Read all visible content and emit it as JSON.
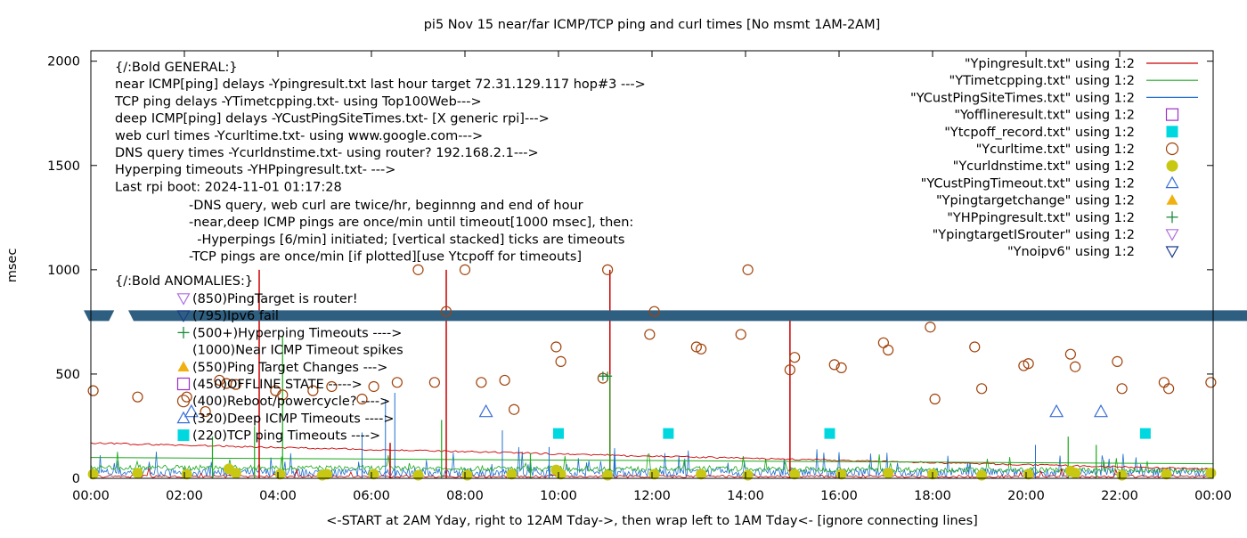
{
  "chart_data": {
    "type": "scatter",
    "title": "pi5 Nov 15  near/far ICMP/TCP ping and curl times [No msmt 1AM-2AM]",
    "xlabel": "<-START at 2AM Yday, right to 12AM Tday->, then wrap left to 1AM Tday<- [ignore connecting lines]",
    "ylabel": "msec",
    "xlim": [
      0,
      24
    ],
    "ylim": [
      0,
      2050
    ],
    "x_ticks": [
      "00:00",
      "02:00",
      "04:00",
      "06:00",
      "08:00",
      "10:00",
      "12:00",
      "14:00",
      "16:00",
      "18:00",
      "20:00",
      "22:00",
      "00:00"
    ],
    "y_ticks": [
      0,
      500,
      1000,
      1500,
      2000
    ],
    "grid": false,
    "legend_position": "top-right",
    "legend": [
      {
        "label": "\"Ypingresult.txt\" using 1:2",
        "style": "line",
        "color": "#cc0000"
      },
      {
        "label": "\"YTimetcpping.txt\" using 1:2",
        "style": "line",
        "color": "#1aa81a"
      },
      {
        "label": "\"YCustPingSiteTimes.txt\" using 1:2",
        "style": "line",
        "color": "#1f6fd0"
      },
      {
        "label": "\"Yofflineresult.txt\" using 1:2",
        "style": "open-square",
        "color": "#9b30c8"
      },
      {
        "label": "\"Ytcpoff_record.txt\" using 1:2",
        "style": "filled-square",
        "color": "#00d8e0"
      },
      {
        "label": "\"Ycurltime.txt\" using 1:2",
        "style": "open-circle",
        "color": "#a0420a"
      },
      {
        "label": "\"Ycurldnstime.txt\" using 1:2",
        "style": "filled-circle",
        "color": "#c8c814"
      },
      {
        "label": "\"YCustPingTimeout.txt\" using 1:2",
        "style": "open-triangle",
        "color": "#3a6fd8"
      },
      {
        "label": "\"Ypingtargetchange\" using 1:2",
        "style": "filled-triangle",
        "color": "#f0b010"
      },
      {
        "label": "\"YHPpingresult.txt\" using 1:2",
        "style": "plus",
        "color": "#1a8a3a"
      },
      {
        "label": "\"YpingtargetISrouter\" using 1:2",
        "style": "open-down-triangle",
        "color": "#b070e0"
      },
      {
        "label": "\"Ynoipv6\" using 1:2",
        "style": "open-down-triangle",
        "color": "#1a3a8a"
      }
    ],
    "annotations_top": [
      "{/:Bold GENERAL:}",
      "near ICMP[ping] delays -Ypingresult.txt last hour target 72.31.129.117 hop#3 --->",
      "TCP ping delays -YTimetcpping.txt- using Top100Web--->",
      "deep ICMP[ping] delays -YCustPingSiteTimes.txt- [X generic rpi]--->",
      "web curl times -Ycurltime.txt- using www.google.com--->",
      "DNS query times -Ycurldnstime.txt- using router? 192.168.2.1--->",
      "Hyperping timeouts -YHPpingresult.txt- --->",
      "Last rpi boot: 2024-11-01 01:17:28"
    ],
    "annotations_indented": [
      "-DNS query, web curl are twice/hr, beginnng and end of hour",
      "-near,deep ICMP pings are once/min until timeout[1000 msec], then:",
      "  -Hyperpings [6/min] initiated; [vertical stacked] ticks are timeouts",
      "-TCP pings are once/min [if plotted][use Ytcpoff for timeouts]"
    ],
    "anomalies_title": "{/:Bold ANOMALIES:}",
    "anomalies": [
      {
        "text": "(850)PingTarget is router!",
        "marker": "open-down-triangle",
        "color": "#b070e0"
      },
      {
        "text": "(795)Ipv6 fail",
        "marker": "open-down-triangle",
        "color": "#1a3a8a"
      },
      {
        "text": "(500+)Hyperping Timeouts ---->",
        "marker": "plus",
        "color": "#1a8a3a"
      },
      {
        "text": "(1000)Near ICMP Timeout spikes",
        "marker": "none",
        "color": "#cc0000"
      },
      {
        "text": "(550)Ping Target Changes --->",
        "marker": "filled-triangle",
        "color": "#f0b010"
      },
      {
        "text": "(450)OFFLINE STATE ----->",
        "marker": "open-square",
        "color": "#9b30c8"
      },
      {
        "text": "(400)Reboot/powercycle? ---->",
        "marker": "open-circle",
        "color": "#a0420a"
      },
      {
        "text": "(320)Deep ICMP Timeouts ---->",
        "marker": "open-triangle",
        "color": "#3a6fd8"
      },
      {
        "text": "(220)TCP ping Timeouts ---->",
        "marker": "filled-square",
        "color": "#00d8e0"
      }
    ],
    "ipv6_band": {
      "y": 780,
      "color": "#2f5f80",
      "gap_x": [
        0.5,
        0.8
      ]
    },
    "series": {
      "curl_times": [
        [
          0.05,
          420
        ],
        [
          1.0,
          390
        ],
        [
          2.05,
          390
        ],
        [
          2.45,
          320
        ],
        [
          2.75,
          470
        ],
        [
          2.9,
          455
        ],
        [
          3.1,
          450
        ],
        [
          3.95,
          420
        ],
        [
          4.1,
          400
        ],
        [
          4.75,
          420
        ],
        [
          5.15,
          440
        ],
        [
          5.8,
          380
        ],
        [
          6.05,
          440
        ],
        [
          6.55,
          460
        ],
        [
          7.0,
          1000
        ],
        [
          7.35,
          460
        ],
        [
          7.6,
          800
        ],
        [
          8.0,
          1000
        ],
        [
          8.35,
          460
        ],
        [
          8.85,
          470
        ],
        [
          9.05,
          330
        ],
        [
          9.95,
          630
        ],
        [
          10.05,
          560
        ],
        [
          10.95,
          480
        ],
        [
          11.05,
          1000
        ],
        [
          11.95,
          690
        ],
        [
          12.05,
          800
        ],
        [
          12.95,
          630
        ],
        [
          13.05,
          620
        ],
        [
          13.9,
          690
        ],
        [
          14.05,
          1000
        ],
        [
          14.95,
          520
        ],
        [
          15.05,
          580
        ],
        [
          15.9,
          545
        ],
        [
          16.05,
          530
        ],
        [
          16.95,
          650
        ],
        [
          17.05,
          615
        ],
        [
          17.95,
          725
        ],
        [
          18.05,
          380
        ],
        [
          18.9,
          630
        ],
        [
          19.05,
          430
        ],
        [
          19.95,
          540
        ],
        [
          20.05,
          550
        ],
        [
          20.95,
          595
        ],
        [
          21.05,
          535
        ],
        [
          21.95,
          560
        ],
        [
          22.05,
          430
        ],
        [
          22.95,
          460
        ],
        [
          23.05,
          430
        ],
        [
          23.95,
          460
        ]
      ],
      "tcp_timeouts": [
        [
          10.0,
          215
        ],
        [
          12.35,
          215
        ],
        [
          15.8,
          215
        ],
        [
          22.55,
          215
        ]
      ],
      "deep_timeouts": [
        [
          2.15,
          320
        ],
        [
          8.45,
          320
        ],
        [
          20.65,
          320
        ],
        [
          21.6,
          320
        ]
      ],
      "dns_times": [
        [
          0.05,
          20
        ],
        [
          1.0,
          25
        ],
        [
          2.05,
          20
        ],
        [
          2.95,
          45
        ],
        [
          3.1,
          25
        ],
        [
          4.05,
          20
        ],
        [
          4.95,
          15
        ],
        [
          5.05,
          20
        ],
        [
          6.05,
          20
        ],
        [
          7.0,
          15
        ],
        [
          8.05,
          15
        ],
        [
          9.0,
          20
        ],
        [
          9.95,
          40
        ],
        [
          10.05,
          20
        ],
        [
          11.05,
          15
        ],
        [
          12.05,
          20
        ],
        [
          13.05,
          20
        ],
        [
          14.05,
          15
        ],
        [
          15.05,
          20
        ],
        [
          16.05,
          20
        ],
        [
          17.05,
          25
        ],
        [
          18.0,
          20
        ],
        [
          19.05,
          15
        ],
        [
          20.05,
          20
        ],
        [
          20.95,
          35
        ],
        [
          21.05,
          25
        ],
        [
          22.05,
          15
        ],
        [
          23.0,
          20
        ],
        [
          23.95,
          25
        ]
      ],
      "near_ping_spikes": [
        [
          3.6,
          1000
        ],
        [
          6.4,
          170
        ],
        [
          7.6,
          1000
        ],
        [
          11.1,
          1000
        ],
        [
          14.95,
          800
        ]
      ],
      "hyperping_points": [
        [
          10.95,
          490
        ],
        [
          11.05,
          490
        ]
      ]
    }
  }
}
